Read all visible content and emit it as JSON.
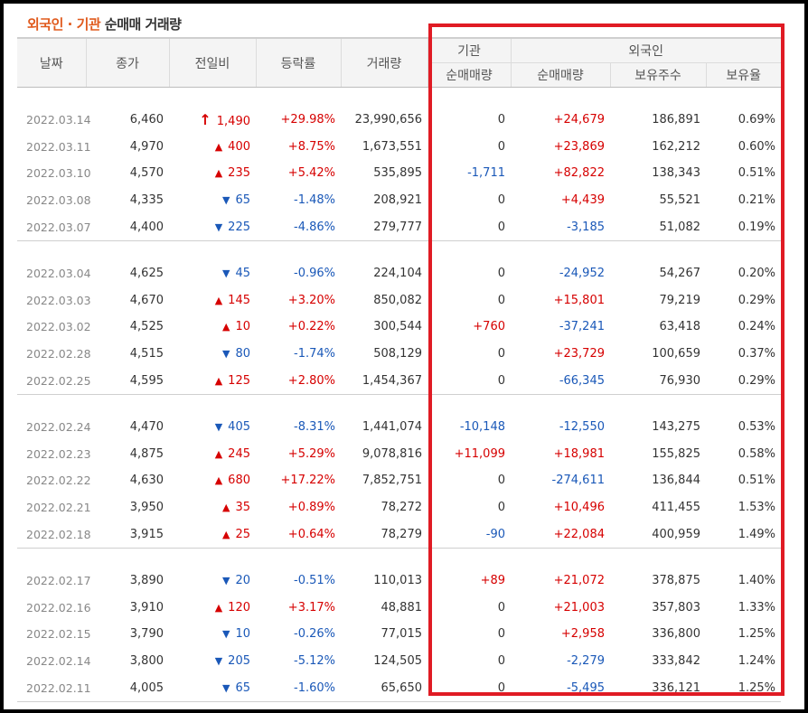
{
  "title": {
    "part1": "외국인",
    "dot": " · ",
    "part2": "기관",
    "part3": " 순매매 거래량"
  },
  "headers": {
    "date": "날짜",
    "close": "종가",
    "change": "전일비",
    "rate": "등락률",
    "volume": "거래량",
    "institution": "기관",
    "foreign": "외국인",
    "inst_net": "순매매량",
    "foreign_net": "순매매량",
    "foreign_hold": "보유주수",
    "foreign_ratio": "보유율"
  },
  "rows": [
    {
      "date": "2022.03.14",
      "close": "6,460",
      "dir": "limit",
      "change": "1,490",
      "rate": "+29.98%",
      "volume": "23,990,656",
      "inst": "0",
      "fnet": "+24,679",
      "hold": "186,891",
      "ratio": "0.69%"
    },
    {
      "date": "2022.03.11",
      "close": "4,970",
      "dir": "up",
      "change": "400",
      "rate": "+8.75%",
      "volume": "1,673,551",
      "inst": "0",
      "fnet": "+23,869",
      "hold": "162,212",
      "ratio": "0.60%"
    },
    {
      "date": "2022.03.10",
      "close": "4,570",
      "dir": "up",
      "change": "235",
      "rate": "+5.42%",
      "volume": "535,895",
      "inst": "-1,711",
      "fnet": "+82,822",
      "hold": "138,343",
      "ratio": "0.51%"
    },
    {
      "date": "2022.03.08",
      "close": "4,335",
      "dir": "down",
      "change": "65",
      "rate": "-1.48%",
      "volume": "208,921",
      "inst": "0",
      "fnet": "+4,439",
      "hold": "55,521",
      "ratio": "0.21%"
    },
    {
      "date": "2022.03.07",
      "close": "4,400",
      "dir": "down",
      "change": "225",
      "rate": "-4.86%",
      "volume": "279,777",
      "inst": "0",
      "fnet": "-3,185",
      "hold": "51,082",
      "ratio": "0.19%"
    },
    {
      "date": "2022.03.04",
      "close": "4,625",
      "dir": "down",
      "change": "45",
      "rate": "-0.96%",
      "volume": "224,104",
      "inst": "0",
      "fnet": "-24,952",
      "hold": "54,267",
      "ratio": "0.20%"
    },
    {
      "date": "2022.03.03",
      "close": "4,670",
      "dir": "up",
      "change": "145",
      "rate": "+3.20%",
      "volume": "850,082",
      "inst": "0",
      "fnet": "+15,801",
      "hold": "79,219",
      "ratio": "0.29%"
    },
    {
      "date": "2022.03.02",
      "close": "4,525",
      "dir": "up",
      "change": "10",
      "rate": "+0.22%",
      "volume": "300,544",
      "inst": "+760",
      "fnet": "-37,241",
      "hold": "63,418",
      "ratio": "0.24%"
    },
    {
      "date": "2022.02.28",
      "close": "4,515",
      "dir": "down",
      "change": "80",
      "rate": "-1.74%",
      "volume": "508,129",
      "inst": "0",
      "fnet": "+23,729",
      "hold": "100,659",
      "ratio": "0.37%"
    },
    {
      "date": "2022.02.25",
      "close": "4,595",
      "dir": "up",
      "change": "125",
      "rate": "+2.80%",
      "volume": "1,454,367",
      "inst": "0",
      "fnet": "-66,345",
      "hold": "76,930",
      "ratio": "0.29%"
    },
    {
      "date": "2022.02.24",
      "close": "4,470",
      "dir": "down",
      "change": "405",
      "rate": "-8.31%",
      "volume": "1,441,074",
      "inst": "-10,148",
      "fnet": "-12,550",
      "hold": "143,275",
      "ratio": "0.53%"
    },
    {
      "date": "2022.02.23",
      "close": "4,875",
      "dir": "up",
      "change": "245",
      "rate": "+5.29%",
      "volume": "9,078,816",
      "inst": "+11,099",
      "fnet": "+18,981",
      "hold": "155,825",
      "ratio": "0.58%"
    },
    {
      "date": "2022.02.22",
      "close": "4,630",
      "dir": "up",
      "change": "680",
      "rate": "+17.22%",
      "volume": "7,852,751",
      "inst": "0",
      "fnet": "-274,611",
      "hold": "136,844",
      "ratio": "0.51%"
    },
    {
      "date": "2022.02.21",
      "close": "3,950",
      "dir": "up",
      "change": "35",
      "rate": "+0.89%",
      "volume": "78,272",
      "inst": "0",
      "fnet": "+10,496",
      "hold": "411,455",
      "ratio": "1.53%"
    },
    {
      "date": "2022.02.18",
      "close": "3,915",
      "dir": "up",
      "change": "25",
      "rate": "+0.64%",
      "volume": "78,279",
      "inst": "-90",
      "fnet": "+22,084",
      "hold": "400,959",
      "ratio": "1.49%"
    },
    {
      "date": "2022.02.17",
      "close": "3,890",
      "dir": "down",
      "change": "20",
      "rate": "-0.51%",
      "volume": "110,013",
      "inst": "+89",
      "fnet": "+21,072",
      "hold": "378,875",
      "ratio": "1.40%"
    },
    {
      "date": "2022.02.16",
      "close": "3,910",
      "dir": "up",
      "change": "120",
      "rate": "+3.17%",
      "volume": "48,881",
      "inst": "0",
      "fnet": "+21,003",
      "hold": "357,803",
      "ratio": "1.33%"
    },
    {
      "date": "2022.02.15",
      "close": "3,790",
      "dir": "down",
      "change": "10",
      "rate": "-0.26%",
      "volume": "77,015",
      "inst": "0",
      "fnet": "+2,958",
      "hold": "336,800",
      "ratio": "1.25%"
    },
    {
      "date": "2022.02.14",
      "close": "3,800",
      "dir": "down",
      "change": "205",
      "rate": "-5.12%",
      "volume": "124,505",
      "inst": "0",
      "fnet": "-2,279",
      "hold": "333,842",
      "ratio": "1.24%"
    },
    {
      "date": "2022.02.11",
      "close": "4,005",
      "dir": "down",
      "change": "65",
      "rate": "-1.60%",
      "volume": "65,650",
      "inst": "0",
      "fnet": "-5,495",
      "hold": "336,121",
      "ratio": "1.25%"
    }
  ],
  "colors": {
    "up": "#d60000",
    "down": "#1a58b8",
    "title_accent": "#e05a1d",
    "highlight_box": "#e01b24"
  },
  "icons": {
    "limit": "arrow-limit-up-icon",
    "up": "triangle-up-icon",
    "down": "triangle-down-icon"
  }
}
